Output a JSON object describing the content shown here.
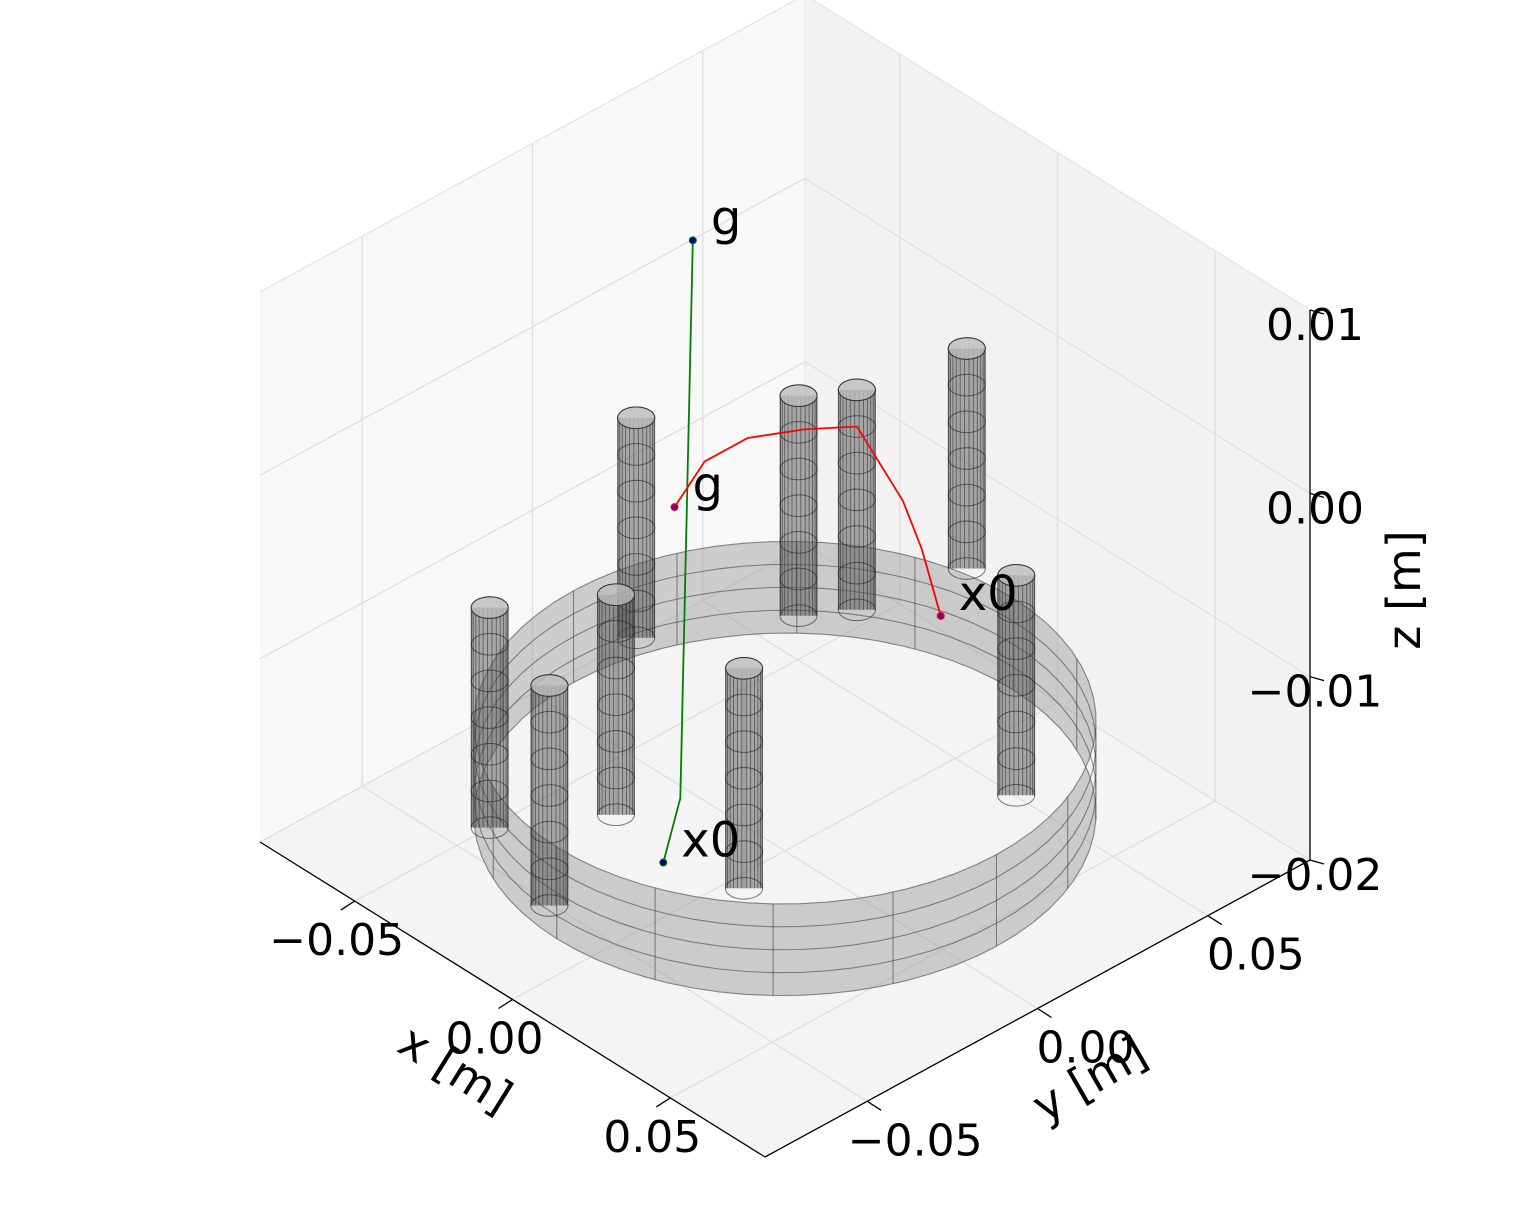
{
  "chart_data": {
    "type": "line",
    "subtype": "3d-trajectory-with-cylindrical-obstacles",
    "title": "",
    "xlabel": "x [m]",
    "ylabel": "y [m]",
    "zlabel": "z [m]",
    "xlim": [
      -0.08,
      0.08
    ],
    "ylim": [
      -0.08,
      0.08
    ],
    "zlim": [
      -0.02,
      0.01
    ],
    "xticks": [
      {
        "v": -0.05,
        "label": "−0.05"
      },
      {
        "v": 0.0,
        "label": "0.00"
      },
      {
        "v": 0.05,
        "label": "0.05"
      }
    ],
    "yticks": [
      {
        "v": -0.05,
        "label": "−0.05"
      },
      {
        "v": 0.0,
        "label": "0.00"
      },
      {
        "v": 0.05,
        "label": "0.05"
      }
    ],
    "zticks": [
      {
        "v": -0.02,
        "label": "−0.02"
      },
      {
        "v": -0.01,
        "label": "−0.01"
      },
      {
        "v": 0.0,
        "label": "0.00"
      },
      {
        "v": 0.01,
        "label": "0.01"
      }
    ],
    "grid": true,
    "pane_colors": {
      "back_x": "#f2f2f2",
      "back_y": "#f8f8f8",
      "floor": "#f4f4f4"
    },
    "ring": {
      "center": [
        0,
        0
      ],
      "radius": 0.067,
      "z_range": [
        -0.018,
        -0.013
      ],
      "color": "#999999"
    },
    "cylinders": [
      {
        "x": -0.045,
        "y": -0.045,
        "r": 0.004,
        "z_range": [
          -0.019,
          -0.007
        ]
      },
      {
        "x": -0.045,
        "y": -0.002,
        "r": 0.004,
        "z_range": [
          -0.013,
          -0.001
        ]
      },
      {
        "x": -0.005,
        "y": -0.045,
        "r": 0.004,
        "z_range": [
          -0.014,
          -0.002
        ]
      },
      {
        "x": 0.014,
        "y": -0.025,
        "r": 0.004,
        "z_range": [
          -0.018,
          -0.006
        ]
      },
      {
        "x": -0.027,
        "y": 0.029,
        "r": 0.004,
        "z_range": [
          -0.013,
          -0.001
        ]
      },
      {
        "x": -0.025,
        "y": -0.046,
        "r": 0.004,
        "z_range": [
          -0.021,
          -0.009
        ]
      },
      {
        "x": -0.015,
        "y": 0.035,
        "r": 0.004,
        "z_range": [
          -0.012,
          0.0
        ]
      },
      {
        "x": -0.005,
        "y": 0.058,
        "r": 0.004,
        "z_range": [
          -0.011,
          0.001
        ]
      },
      {
        "x": 0.029,
        "y": 0.041,
        "r": 0.004,
        "z_range": [
          -0.018,
          -0.006
        ]
      }
    ],
    "series": [
      {
        "color": "#008000",
        "marker_color": "#000080",
        "points": [
          [
            0.01,
            -0.045,
            -0.015
          ],
          [
            0.01,
            -0.04,
            -0.012
          ],
          [
            0.005,
            -0.035,
            -0.01
          ],
          [
            0.0,
            -0.03,
            -0.008
          ],
          [
            -0.005,
            -0.025,
            -0.006
          ],
          [
            -0.01,
            -0.02,
            -0.004
          ],
          [
            -0.015,
            -0.015,
            -0.002
          ],
          [
            -0.02,
            -0.01,
            0.0
          ],
          [
            -0.025,
            -0.005,
            0.002
          ],
          [
            -0.03,
            0.0,
            0.004
          ],
          [
            -0.035,
            0.005,
            0.006
          ],
          [
            -0.04,
            0.01,
            0.008
          ]
        ],
        "start_label": "x0",
        "goal_label": "g"
      },
      {
        "color": "#ff0000",
        "marker_color": "#800080",
        "points": [
          [
            0.004,
            0.042,
            -0.011
          ],
          [
            -0.002,
            0.042,
            -0.008
          ],
          [
            -0.008,
            0.042,
            -0.006
          ],
          [
            -0.015,
            0.035,
            -0.002
          ],
          [
            -0.022,
            0.026,
            -0.002
          ],
          [
            -0.028,
            0.015,
            -0.002
          ],
          [
            -0.033,
            0.007,
            -0.003
          ],
          [
            -0.035,
            0.0,
            -0.005
          ]
        ],
        "start_label": "x0",
        "goal_label": "g"
      }
    ]
  }
}
